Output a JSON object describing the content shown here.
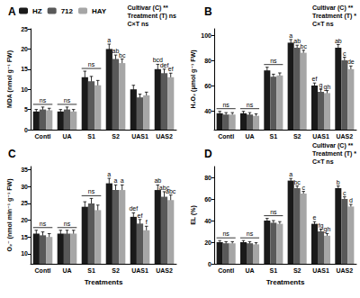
{
  "chart_data": [
    {
      "type": "bar",
      "title": "A",
      "y_label": "MDA (nmol g⁻¹ FW)",
      "categories": [
        "Contl",
        "UA",
        "S1",
        "S2",
        "UAS1",
        "UAS2"
      ],
      "series": [
        {
          "name": "HZ",
          "color": "#1a1a1a",
          "values": [
            4.5,
            4.5,
            13,
            20,
            10,
            15
          ],
          "errors": [
            0.5,
            0.5,
            1.5,
            1.2,
            1.0,
            1.2
          ],
          "letters": [
            null,
            null,
            null,
            "a",
            null,
            "bcd"
          ]
        },
        {
          "name": "712",
          "color": "#595959",
          "values": [
            5,
            5,
            12,
            17.5,
            8,
            14
          ],
          "errors": [
            0.6,
            0.6,
            1.2,
            1.0,
            0.8,
            1.0
          ],
          "letters": [
            null,
            null,
            null,
            "ab",
            null,
            "def"
          ]
        },
        {
          "name": "HAY",
          "color": "#a6a6a6",
          "values": [
            4.8,
            4.5,
            11,
            16.5,
            8.5,
            13
          ],
          "errors": [
            0.5,
            0.5,
            1.2,
            1.0,
            0.8,
            1.0
          ],
          "letters": [
            null,
            null,
            null,
            "bc",
            null,
            "ef"
          ]
        }
      ],
      "group_labels": [
        {
          "category": "Contl",
          "label": "ns"
        },
        {
          "category": "UA",
          "label": "ns"
        },
        {
          "category": "S1",
          "label": "ns"
        }
      ],
      "stats": [
        "Cultivar (C) **",
        "Treatment (T) ns",
        "C×T ns"
      ],
      "ylim": [
        0,
        25
      ],
      "yticks": [
        0,
        5,
        10,
        15,
        20,
        25
      ],
      "grid": false,
      "legend": "top-left"
    },
    {
      "type": "bar",
      "title": "B",
      "y_label": "H₂O₂ (μmol g⁻¹ FW)",
      "categories": [
        "Contl",
        "UA",
        "S1",
        "S2",
        "UAS1",
        "UAS2"
      ],
      "series": [
        {
          "name": "HZ",
          "color": "#1a1a1a",
          "values": [
            38,
            38,
            72,
            94,
            60,
            90
          ],
          "errors": [
            1.5,
            1.5,
            2.5,
            2.5,
            2,
            2.5
          ],
          "letters": [
            null,
            null,
            null,
            "a",
            "ef",
            "ab"
          ]
        },
        {
          "name": "712",
          "color": "#595959",
          "values": [
            37,
            37,
            67,
            90,
            55,
            80
          ],
          "errors": [
            1.5,
            1.5,
            2,
            2,
            2,
            2.5
          ],
          "letters": [
            null,
            null,
            null,
            "ab",
            "g",
            "c"
          ]
        },
        {
          "name": "HAY",
          "color": "#a6a6a6",
          "values": [
            37,
            36,
            68,
            86,
            54,
            73
          ],
          "errors": [
            1.5,
            1.5,
            2,
            2,
            2,
            2.5
          ],
          "letters": [
            null,
            null,
            null,
            "bc",
            "gh",
            "de"
          ]
        }
      ],
      "group_labels": [
        {
          "category": "Contl",
          "label": "ns"
        },
        {
          "category": "UA",
          "label": "ns"
        },
        {
          "category": "S1",
          "label": "ns"
        }
      ],
      "stats": [
        "Cultivar (C) **",
        "Treatment (T) *",
        "C×T ns"
      ],
      "ylim": [
        25,
        105
      ],
      "yticks": [
        40,
        60,
        80,
        100
      ],
      "grid": false
    },
    {
      "type": "bar",
      "title": "C",
      "y_label": "O₂⁻ (nmol min⁻¹ g⁻¹ FW)",
      "x_label": "Treatments",
      "categories": [
        "Contl",
        "UA",
        "S1",
        "S2",
        "UAS1",
        "UAS2"
      ],
      "series": [
        {
          "name": "HZ",
          "color": "#1a1a1a",
          "values": [
            16,
            16,
            24,
            31,
            21,
            29
          ],
          "errors": [
            1,
            1,
            1.5,
            1.5,
            1.2,
            1.5
          ],
          "letters": [
            null,
            null,
            null,
            "a",
            "def",
            "ab"
          ]
        },
        {
          "name": "712",
          "color": "#595959",
          "values": [
            15.5,
            16,
            25,
            29,
            19,
            27
          ],
          "errors": [
            1,
            1,
            1.5,
            1.5,
            1.2,
            1.5
          ],
          "letters": [
            null,
            null,
            null,
            "a",
            "ef",
            "abc"
          ]
        },
        {
          "name": "HAY",
          "color": "#a6a6a6",
          "values": [
            15,
            16,
            23,
            29,
            17,
            26
          ],
          "errors": [
            1,
            1,
            1.5,
            1.5,
            1.2,
            1.5
          ],
          "letters": [
            null,
            null,
            null,
            "a",
            "f",
            "abc"
          ]
        }
      ],
      "group_labels": [
        {
          "category": "Contl",
          "label": "ns"
        },
        {
          "category": "UA",
          "label": "ns"
        },
        {
          "category": "S1",
          "label": "ns"
        }
      ],
      "ylim": [
        7,
        36
      ],
      "yticks": [
        10,
        15,
        20,
        25,
        30,
        35
      ],
      "grid": false
    },
    {
      "type": "bar",
      "title": "D",
      "y_label": "EL (%)",
      "x_label": "Treatments",
      "categories": [
        "Contl",
        "UA",
        "S1",
        "S2",
        "UAS1",
        "UAS2"
      ],
      "series": [
        {
          "name": "HZ",
          "color": "#1a1a1a",
          "values": [
            20,
            20,
            40,
            77,
            37,
            70
          ],
          "errors": [
            1.5,
            1.5,
            2,
            2,
            2,
            2
          ],
          "letters": [
            null,
            null,
            null,
            "a",
            "e",
            "b"
          ]
        },
        {
          "name": "712",
          "color": "#595959",
          "values": [
            19,
            19,
            38,
            70,
            30,
            60
          ],
          "errors": [
            1.5,
            1.5,
            2,
            2,
            2,
            2
          ],
          "letters": [
            null,
            null,
            null,
            "bc",
            "fg",
            "c"
          ]
        },
        {
          "name": "HAY",
          "color": "#a6a6a6",
          "values": [
            19,
            18,
            37,
            65,
            26,
            53
          ],
          "errors": [
            1.5,
            1.5,
            2,
            2,
            2,
            2
          ],
          "letters": [
            null,
            null,
            null,
            "c",
            "gh",
            "d"
          ]
        }
      ],
      "group_labels": [
        {
          "category": "Contl",
          "label": "ns"
        },
        {
          "category": "UA",
          "label": "ns"
        },
        {
          "category": "S1",
          "label": "ns"
        }
      ],
      "stats": [
        "Cultivar (C) **",
        "Treatment (T) *",
        "C×T ns"
      ],
      "ylim": [
        0,
        90
      ],
      "yticks": [
        0,
        20,
        40,
        60,
        80
      ],
      "grid": false
    }
  ]
}
